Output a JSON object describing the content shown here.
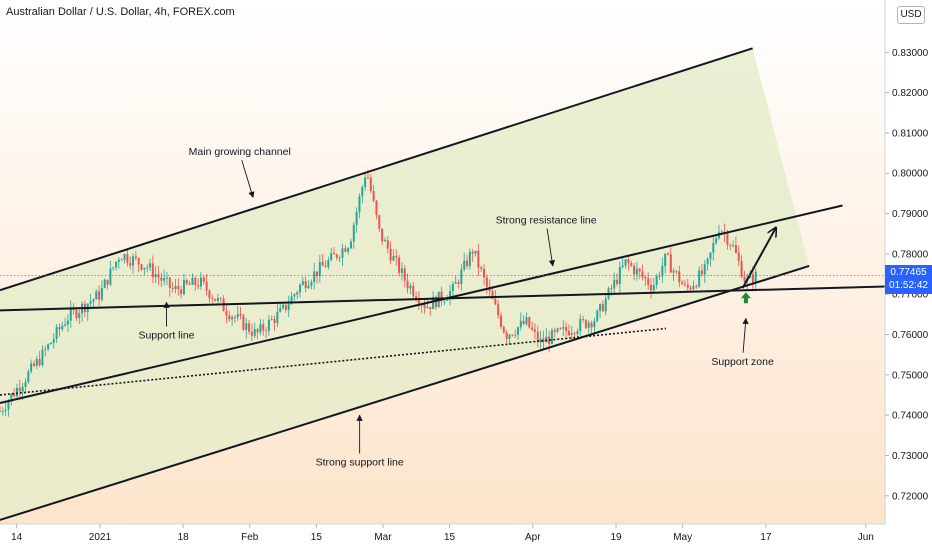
{
  "title": "Australian Dollar / U.S. Dollar, 4h, FOREX.com",
  "currency_button": "USD",
  "current_price": "0.77465",
  "countdown": "01:52:42",
  "colors": {
    "background_top": "#ffffff",
    "background_bottom": "#fde4cb",
    "channel_fill": "#e5ecc9",
    "candle_up": "#26a69a",
    "candle_down": "#ef5350",
    "price_tag": "#2962ff",
    "support_arrow": "#1b8a3a"
  },
  "chart_data": {
    "type": "candlestick",
    "title": "Australian Dollar / U.S. Dollar, 4h, FOREX.com",
    "ylim": [
      0.713,
      0.8395
    ],
    "y_ticks": [
      "0.83000",
      "0.82000",
      "0.81000",
      "0.80000",
      "0.79000",
      "0.78000",
      "0.77000",
      "0.76000",
      "0.75000",
      "0.74000",
      "0.73000",
      "0.72000"
    ],
    "x_ticks": [
      {
        "label": "14",
        "pos": 0.5
      },
      {
        "label": "2021",
        "pos": 3.0
      },
      {
        "label": "18",
        "pos": 5.5
      },
      {
        "label": "Feb",
        "pos": 7.5
      },
      {
        "label": "15",
        "pos": 9.5
      },
      {
        "label": "Mar",
        "pos": 11.5
      },
      {
        "label": "15",
        "pos": 13.5
      },
      {
        "label": "Apr",
        "pos": 16.0
      },
      {
        "label": "19",
        "pos": 18.5
      },
      {
        "label": "May",
        "pos": 20.5
      },
      {
        "label": "17",
        "pos": 23.0
      },
      {
        "label": "Jun",
        "pos": 26.0
      }
    ],
    "price_path": [
      [
        0.0,
        0.741
      ],
      [
        1.2,
        0.754
      ],
      [
        2.0,
        0.764
      ],
      [
        3.0,
        0.77
      ],
      [
        3.6,
        0.78
      ],
      [
        4.4,
        0.777
      ],
      [
        5.2,
        0.771
      ],
      [
        6.0,
        0.773
      ],
      [
        6.8,
        0.766
      ],
      [
        7.7,
        0.76
      ],
      [
        8.5,
        0.766
      ],
      [
        9.0,
        0.772
      ],
      [
        10.0,
        0.779
      ],
      [
        10.5,
        0.783
      ],
      [
        11.0,
        0.801
      ],
      [
        11.4,
        0.785
      ],
      [
        12.2,
        0.773
      ],
      [
        12.8,
        0.767
      ],
      [
        13.6,
        0.771
      ],
      [
        14.2,
        0.781
      ],
      [
        14.6,
        0.772
      ],
      [
        15.2,
        0.76
      ],
      [
        15.8,
        0.763
      ],
      [
        16.2,
        0.758
      ],
      [
        17.0,
        0.761
      ],
      [
        17.9,
        0.764
      ],
      [
        18.4,
        0.772
      ],
      [
        18.8,
        0.778
      ],
      [
        19.6,
        0.772
      ],
      [
        20.0,
        0.779
      ],
      [
        20.6,
        0.771
      ],
      [
        21.2,
        0.776
      ],
      [
        21.6,
        0.787
      ],
      [
        22.0,
        0.782
      ],
      [
        22.4,
        0.773
      ],
      [
        22.7,
        0.7745
      ]
    ],
    "lines": {
      "main_channel_upper": {
        "from": [
          0.0,
          0.771
        ],
        "to": [
          22.6,
          0.831
        ]
      },
      "main_channel_lower": {
        "from": [
          0.0,
          0.714
        ],
        "to": [
          24.3,
          0.777
        ]
      },
      "strong_resistance": {
        "from": [
          0.0,
          0.743
        ],
        "to": [
          25.3,
          0.792
        ]
      },
      "support_line": {
        "from": [
          0.0,
          0.766
        ],
        "to": [
          27.0,
          0.772
        ]
      },
      "dotted_support": {
        "from": [
          0.0,
          0.745
        ],
        "to": [
          20.0,
          0.7615
        ]
      },
      "projection_arrow": {
        "from": [
          22.3,
          0.7715
        ],
        "to": [
          23.3,
          0.7865
        ]
      }
    },
    "annotations": [
      {
        "text": "Main growing channel",
        "at": [
          7.2,
          0.8045
        ],
        "pointer_to": [
          7.6,
          0.794
        ]
      },
      {
        "text": "Strong resistance line",
        "at": [
          16.4,
          0.7875
        ],
        "pointer_to": [
          16.6,
          0.777
        ]
      },
      {
        "text": "Support line",
        "at": [
          5.0,
          0.759
        ],
        "pointer_to": [
          5.0,
          0.768
        ]
      },
      {
        "text": "Support zone",
        "at": [
          22.3,
          0.7525
        ],
        "pointer_to": [
          22.4,
          0.764
        ]
      },
      {
        "text": "Strong support line",
        "at": [
          10.8,
          0.7275
        ],
        "pointer_to": [
          10.8,
          0.74
        ]
      }
    ]
  }
}
